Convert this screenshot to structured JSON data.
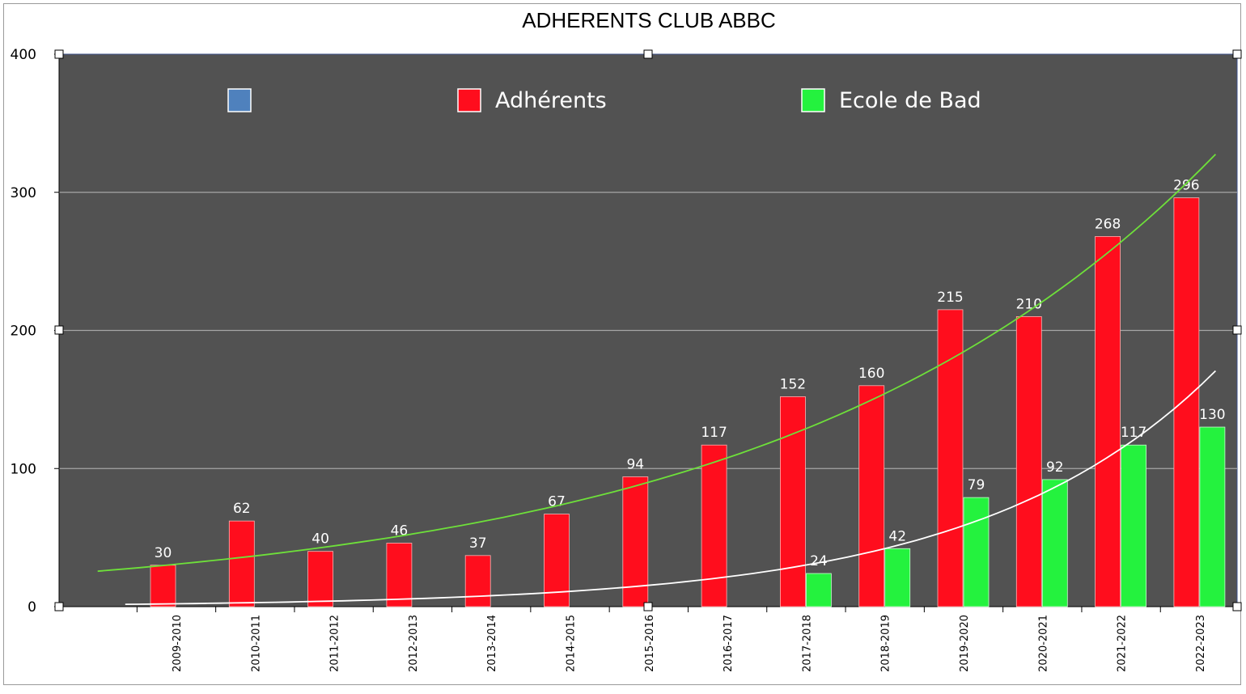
{
  "chart_data": {
    "type": "bar",
    "title": "ADHERENTS CLUB ABBC",
    "categories": [
      "2009-2010",
      "2010-2011",
      "2011-2012",
      "2012-2013",
      "2013-2014",
      "2014-2015",
      "2015-2016",
      "2016-2017",
      "2017-2018",
      "2018-2019",
      "2019-2020",
      "2020-2021",
      "2021-2022",
      "2022-2023"
    ],
    "series": [
      {
        "name": "",
        "color": "#4f81bd",
        "values": [
          null,
          null,
          null,
          null,
          null,
          null,
          null,
          null,
          null,
          null,
          null,
          null,
          null,
          null
        ]
      },
      {
        "name": "Adhérents",
        "color": "#ff0d1d",
        "values": [
          30,
          62,
          40,
          46,
          37,
          67,
          94,
          117,
          152,
          160,
          215,
          210,
          268,
          296
        ]
      },
      {
        "name": "Ecole de Bad",
        "color": "#24f23e",
        "values": [
          null,
          null,
          null,
          null,
          null,
          null,
          null,
          null,
          24,
          42,
          79,
          92,
          117,
          130
        ]
      }
    ],
    "trendlines": [
      {
        "series": "Adhérents",
        "type": "exponential",
        "color": "#6ee03a"
      },
      {
        "series": "Ecole de Bad",
        "type": "exponential",
        "color": "#ffffff"
      }
    ],
    "ylim": [
      0,
      400
    ],
    "yticks": [
      0,
      100,
      200,
      300,
      400
    ],
    "xlabel": "",
    "ylabel": "",
    "grid": true,
    "legend_position": "top",
    "plot_background": "#525252",
    "data_labels": true
  }
}
